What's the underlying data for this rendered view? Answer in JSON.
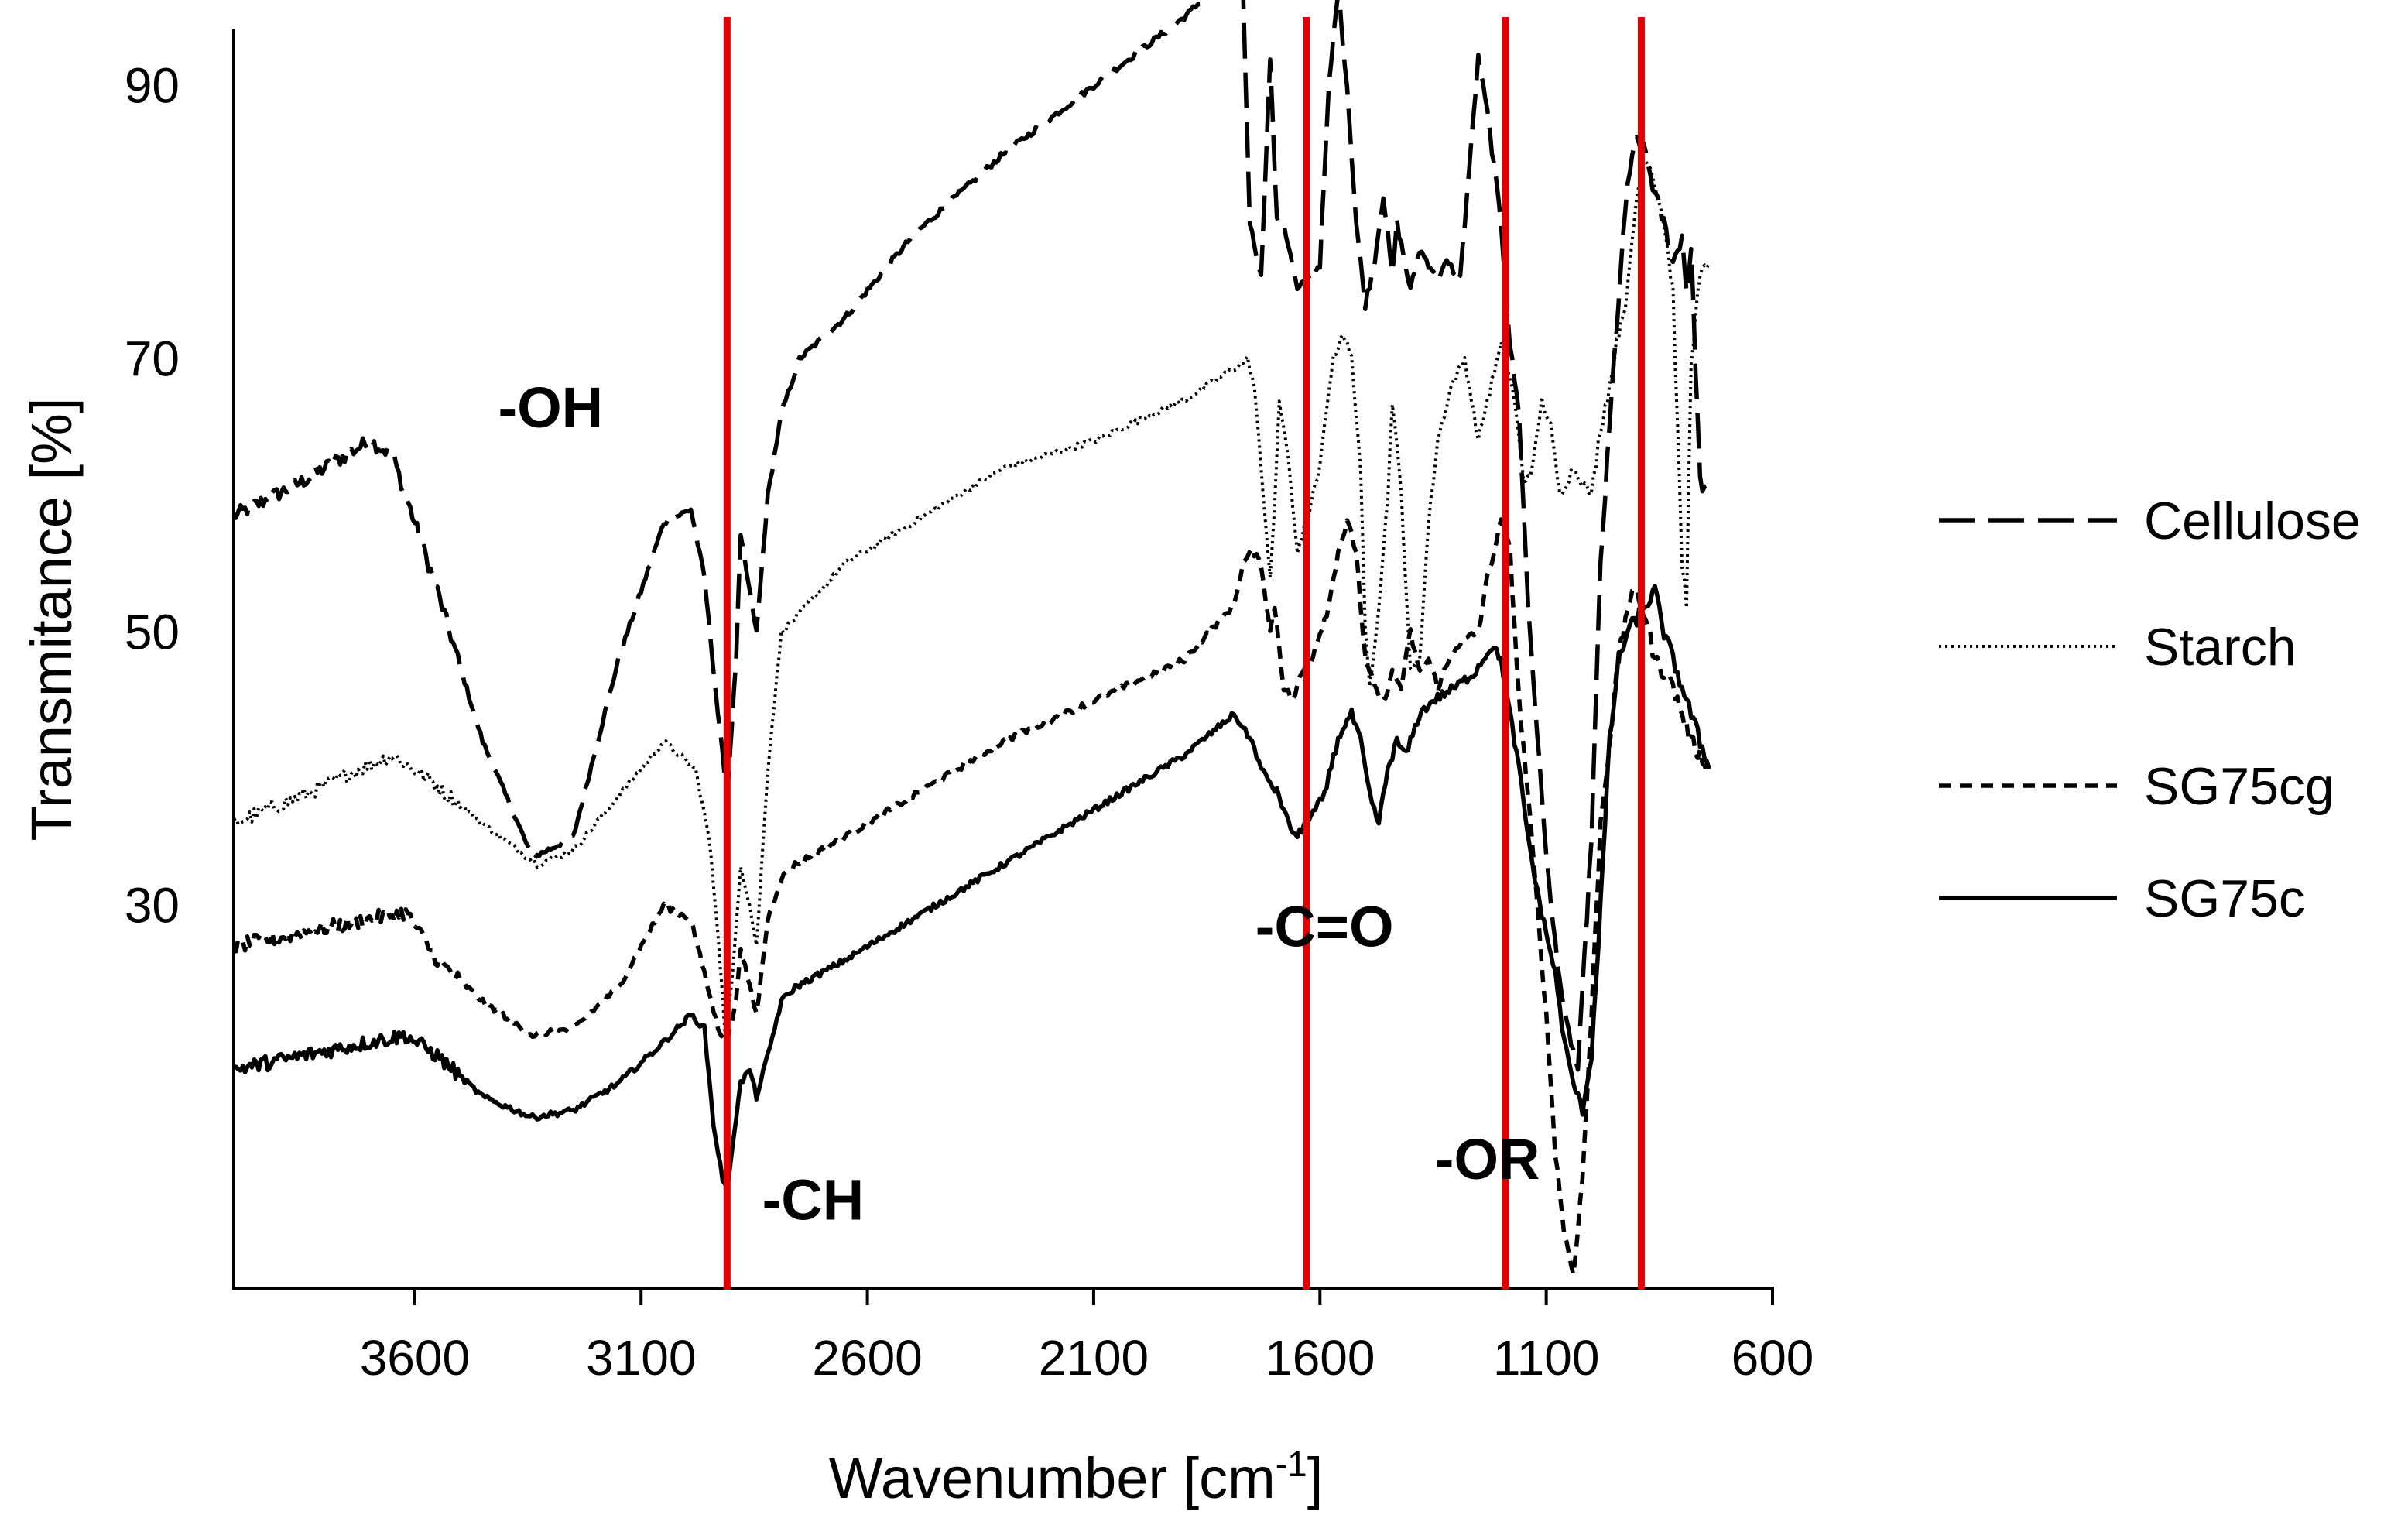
{
  "chart_data": {
    "type": "line",
    "title": "",
    "xlabel": "Wavenumber [cm",
    "xlabel_sup": "-1",
    "xlabel_close": "]",
    "ylabel": "Transmitance [%]",
    "xlim": [
      4000,
      600
    ],
    "ylim": [
      2,
      94
    ],
    "x_ticks": [
      3600,
      3100,
      2600,
      2100,
      1600,
      1100,
      600
    ],
    "x_tick_labels": [
      "3600",
      "3100",
      "2600",
      "2100",
      "1600",
      "1100",
      "600"
    ],
    "y_ticks": [
      30,
      50,
      70,
      90
    ],
    "y_tick_labels": [
      "30",
      "50",
      "70",
      "90"
    ],
    "grid": false,
    "legend_position": "right",
    "colors": {
      "series": "#000000",
      "reference": "#e00000"
    },
    "reference_lines": [
      {
        "x": 2910,
        "label": "-CH"
      },
      {
        "x": 1630,
        "label": "-C=O"
      },
      {
        "x": 1190,
        "label": "-OR"
      },
      {
        "x": 890,
        "label": ""
      }
    ],
    "annotations": [
      {
        "text": "-OH",
        "x": 3300,
        "y": 65
      },
      {
        "text": "-CH",
        "x": 2720,
        "y": 7
      },
      {
        "text": "-C=O",
        "x": 1590,
        "y": 27
      },
      {
        "text": "-OR",
        "x": 1230,
        "y": 10
      }
    ],
    "series": [
      {
        "name": "Cellulose",
        "style": "long-dash",
        "x": [
          4000,
          3850,
          3700,
          3650,
          3550,
          3450,
          3340,
          3250,
          3150,
          3050,
          2990,
          2960,
          2930,
          2910,
          2890,
          2880,
          2860,
          2845,
          2820,
          2790,
          2750,
          2650,
          2500,
          2300,
          2100,
          1900,
          1790,
          1770,
          1755,
          1730,
          1710,
          1695,
          1680,
          1650,
          1620,
          1600,
          1580,
          1560,
          1540,
          1520,
          1500,
          1480,
          1460,
          1440,
          1430,
          1400,
          1380,
          1340,
          1320,
          1290,
          1250,
          1230,
          1200,
          1180,
          1160,
          1140,
          1110,
          1090,
          1060,
          1030,
          1000,
          980,
          950,
          920,
          900,
          880,
          860,
          840,
          820,
          800,
          790,
          780,
          760,
          740
        ],
        "y": [
          58.5,
          61,
          64,
          63,
          53,
          42,
          33.5,
          35,
          48,
          58,
          59,
          54,
          44,
          38,
          48,
          57,
          53,
          50,
          60,
          66,
          70,
          73,
          79,
          85,
          90,
          95,
          98.5,
          97,
          80,
          76,
          92,
          80,
          80,
          75,
          76,
          77,
          90,
          97,
          90,
          80,
          74,
          77,
          82,
          76,
          80,
          75,
          78,
          76,
          77,
          76,
          92,
          88,
          80,
          71,
          66,
          52,
          38,
          30,
          22,
          18,
          35,
          55,
          70,
          83,
          86,
          85,
          82,
          80,
          77,
          79,
          75,
          78,
          61,
          60
        ]
      },
      {
        "name": "Starch",
        "style": "dotted",
        "x": [
          4000,
          3850,
          3720,
          3650,
          3560,
          3450,
          3330,
          3250,
          3150,
          3050,
          2980,
          2950,
          2930,
          2915,
          2900,
          2880,
          2860,
          2845,
          2820,
          2790,
          2760,
          2650,
          2500,
          2300,
          2100,
          1900,
          1780,
          1760,
          1745,
          1730,
          1720,
          1710,
          1700,
          1690,
          1675,
          1650,
          1630,
          1600,
          1580,
          1570,
          1550,
          1530,
          1510,
          1500,
          1490,
          1470,
          1450,
          1440,
          1420,
          1400,
          1380,
          1360,
          1340,
          1310,
          1280,
          1250,
          1230,
          1200,
          1190,
          1170,
          1150,
          1130,
          1110,
          1090,
          1070,
          1040,
          1000,
          980,
          960,
          940,
          920,
          900,
          880,
          860,
          840,
          820,
          800,
          790,
          780,
          760,
          740
        ],
        "y": [
          36,
          38,
          40,
          41,
          39,
          36,
          33,
          34,
          38,
          42,
          40,
          35,
          28,
          21,
          24,
          33,
          30,
          27,
          40,
          50,
          51,
          55,
          58,
          62,
          64,
          67,
          69.5,
          70,
          68,
          62,
          58,
          54,
          59,
          67,
          64,
          56,
          58,
          62,
          68,
          70,
          72,
          70,
          62,
          50,
          46,
          52,
          60,
          67,
          60,
          47,
          48,
          58,
          64,
          68,
          70,
          64,
          67,
          71,
          70,
          67,
          61,
          62,
          67,
          65,
          60,
          62,
          60,
          65,
          68,
          72,
          75,
          82,
          85,
          83,
          80,
          75,
          55,
          52,
          70,
          76,
          77
        ]
      },
      {
        "name": "SG75cg",
        "style": "short-dash",
        "x": [
          4000,
          3850,
          3700,
          3620,
          3550,
          3450,
          3340,
          3250,
          3150,
          3050,
          2990,
          2960,
          2930,
          2910,
          2890,
          2880,
          2860,
          2845,
          2820,
          2790,
          2760,
          2650,
          2500,
          2300,
          2100,
          1900,
          1790,
          1770,
          1750,
          1730,
          1710,
          1700,
          1690,
          1680,
          1660,
          1640,
          1620,
          1600,
          1580,
          1560,
          1540,
          1520,
          1500,
          1480,
          1460,
          1440,
          1420,
          1400,
          1380,
          1360,
          1340,
          1300,
          1250,
          1230,
          1200,
          1180,
          1160,
          1140,
          1120,
          1100,
          1080,
          1060,
          1040,
          1020,
          1000,
          980,
          960,
          940,
          920,
          900,
          880,
          860,
          840,
          820,
          800,
          780,
          760,
          740
        ],
        "y": [
          27,
          28,
          29,
          29.5,
          26,
          23,
          20.5,
          21,
          24,
          30,
          29,
          25,
          21,
          20,
          23,
          27,
          24,
          22,
          29,
          32,
          33,
          35,
          38,
          42,
          45,
          48,
          52,
          55,
          56,
          55,
          50,
          52,
          49,
          46,
          45,
          47,
          48,
          50,
          52,
          56,
          58,
          56,
          48,
          46,
          45,
          47,
          46,
          50,
          47,
          48,
          46,
          49,
          50,
          54,
          58,
          56,
          45,
          38,
          30,
          22,
          12,
          6,
          3,
          10,
          22,
          36,
          42,
          48,
          52,
          53,
          51,
          48,
          47,
          46,
          44,
          42,
          41,
          40
        ]
      },
      {
        "name": "SG75c",
        "style": "solid",
        "x": [
          4000,
          3850,
          3700,
          3620,
          3550,
          3450,
          3340,
          3250,
          3150,
          3050,
          2990,
          2960,
          2940,
          2920,
          2910,
          2900,
          2880,
          2860,
          2845,
          2820,
          2790,
          2760,
          2650,
          2500,
          2300,
          2100,
          1900,
          1790,
          1770,
          1750,
          1730,
          1710,
          1690,
          1670,
          1650,
          1630,
          1610,
          1590,
          1570,
          1550,
          1530,
          1510,
          1490,
          1470,
          1450,
          1430,
          1410,
          1380,
          1350,
          1300,
          1260,
          1240,
          1220,
          1200,
          1180,
          1160,
          1140,
          1120,
          1100,
          1080,
          1060,
          1040,
          1020,
          1000,
          980,
          960,
          940,
          920,
          900,
          880,
          860,
          840,
          820,
          800,
          780,
          760,
          740
        ],
        "y": [
          18,
          19,
          20,
          20.5,
          19,
          16,
          14.5,
          15,
          17,
          20,
          22,
          21,
          14,
          10,
          9,
          12,
          17,
          18,
          16,
          19,
          23,
          24,
          26,
          29,
          33,
          37,
          41,
          44,
          43,
          42,
          40,
          39,
          38,
          36,
          35,
          36,
          37,
          38,
          41,
          43,
          44,
          42,
          38,
          36,
          40,
          42,
          41,
          44,
          45,
          46,
          47,
          48,
          49,
          48,
          44,
          40,
          35,
          31,
          28,
          25,
          20,
          17,
          15,
          19,
          30,
          42,
          48,
          50,
          51,
          52,
          53,
          50,
          48,
          46,
          44,
          42,
          40
        ]
      }
    ]
  }
}
